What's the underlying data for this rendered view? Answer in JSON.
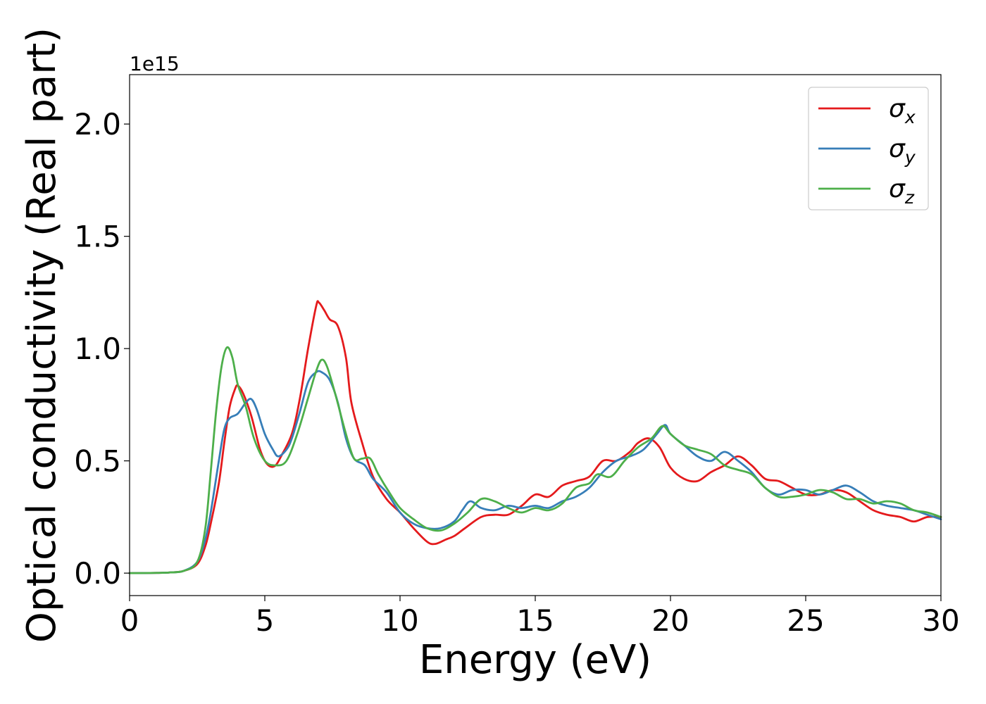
{
  "chart_data": {
    "type": "line",
    "xlabel": "Energy (eV)",
    "ylabel": "Optical conductivity (Real part)",
    "y_offset_text": "1e15",
    "y_scale_exponent": 15,
    "xlim": [
      0,
      30
    ],
    "ylim": [
      -0.1,
      2.22
    ],
    "x_ticks": [
      0,
      5,
      10,
      15,
      20,
      25,
      30
    ],
    "x_tick_labels": [
      "0",
      "5",
      "10",
      "15",
      "20",
      "25",
      "30"
    ],
    "y_ticks": [
      0.0,
      0.5,
      1.0,
      1.5,
      2.0
    ],
    "y_tick_labels": [
      "0.0",
      "0.5",
      "1.0",
      "1.5",
      "2.0"
    ],
    "grid": false,
    "legend_position": "top-right",
    "series": [
      {
        "name": "σx",
        "symbol": "σ",
        "subscript": "x",
        "color": "#e41a1c",
        "points": [
          [
            0,
            0
          ],
          [
            1,
            0.001
          ],
          [
            1.5,
            0.003
          ],
          [
            2,
            0.01
          ],
          [
            2.5,
            0.04
          ],
          [
            2.8,
            0.12
          ],
          [
            3,
            0.22
          ],
          [
            3.3,
            0.4
          ],
          [
            3.5,
            0.58
          ],
          [
            3.7,
            0.74
          ],
          [
            3.9,
            0.82
          ],
          [
            4.0,
            0.835
          ],
          [
            4.2,
            0.8
          ],
          [
            4.5,
            0.7
          ],
          [
            4.8,
            0.56
          ],
          [
            5.0,
            0.5
          ],
          [
            5.2,
            0.475
          ],
          [
            5.4,
            0.48
          ],
          [
            5.6,
            0.52
          ],
          [
            6.0,
            0.62
          ],
          [
            6.3,
            0.78
          ],
          [
            6.6,
            1.0
          ],
          [
            6.9,
            1.19
          ],
          [
            7.0,
            1.205
          ],
          [
            7.2,
            1.17
          ],
          [
            7.4,
            1.13
          ],
          [
            7.7,
            1.1
          ],
          [
            8.0,
            0.96
          ],
          [
            8.2,
            0.76
          ],
          [
            8.6,
            0.58
          ],
          [
            9.0,
            0.43
          ],
          [
            9.5,
            0.33
          ],
          [
            10.0,
            0.27
          ],
          [
            10.5,
            0.2
          ],
          [
            11.0,
            0.14
          ],
          [
            11.3,
            0.13
          ],
          [
            11.7,
            0.15
          ],
          [
            12.0,
            0.165
          ],
          [
            12.4,
            0.2
          ],
          [
            13.0,
            0.25
          ],
          [
            13.5,
            0.26
          ],
          [
            14.0,
            0.26
          ],
          [
            14.5,
            0.3
          ],
          [
            15.0,
            0.35
          ],
          [
            15.5,
            0.34
          ],
          [
            16.0,
            0.39
          ],
          [
            16.5,
            0.41
          ],
          [
            17.0,
            0.43
          ],
          [
            17.5,
            0.5
          ],
          [
            18.0,
            0.5
          ],
          [
            18.5,
            0.54
          ],
          [
            18.8,
            0.58
          ],
          [
            19.2,
            0.6
          ],
          [
            19.6,
            0.56
          ],
          [
            20.0,
            0.47
          ],
          [
            20.5,
            0.42
          ],
          [
            21.0,
            0.41
          ],
          [
            21.5,
            0.45
          ],
          [
            22.0,
            0.48
          ],
          [
            22.5,
            0.52
          ],
          [
            23.0,
            0.48
          ],
          [
            23.5,
            0.42
          ],
          [
            24.0,
            0.41
          ],
          [
            24.5,
            0.38
          ],
          [
            25.0,
            0.35
          ],
          [
            25.5,
            0.35
          ],
          [
            26.0,
            0.37
          ],
          [
            26.5,
            0.36
          ],
          [
            27.0,
            0.32
          ],
          [
            27.5,
            0.28
          ],
          [
            28.0,
            0.26
          ],
          [
            28.5,
            0.25
          ],
          [
            29.0,
            0.23
          ],
          [
            29.5,
            0.25
          ],
          [
            30.0,
            0.25
          ]
        ]
      },
      {
        "name": "σy",
        "symbol": "σ",
        "subscript": "y",
        "color": "#377eb8",
        "points": [
          [
            0,
            0
          ],
          [
            1,
            0.001
          ],
          [
            1.5,
            0.003
          ],
          [
            2,
            0.01
          ],
          [
            2.5,
            0.05
          ],
          [
            2.8,
            0.15
          ],
          [
            3,
            0.27
          ],
          [
            3.3,
            0.5
          ],
          [
            3.5,
            0.64
          ],
          [
            3.7,
            0.69
          ],
          [
            4.0,
            0.71
          ],
          [
            4.3,
            0.76
          ],
          [
            4.5,
            0.775
          ],
          [
            4.7,
            0.73
          ],
          [
            5.0,
            0.62
          ],
          [
            5.3,
            0.55
          ],
          [
            5.5,
            0.52
          ],
          [
            5.8,
            0.55
          ],
          [
            6.0,
            0.6
          ],
          [
            6.3,
            0.72
          ],
          [
            6.6,
            0.85
          ],
          [
            6.9,
            0.895
          ],
          [
            7.1,
            0.895
          ],
          [
            7.4,
            0.86
          ],
          [
            7.7,
            0.76
          ],
          [
            8.0,
            0.6
          ],
          [
            8.3,
            0.51
          ],
          [
            8.7,
            0.48
          ],
          [
            9.0,
            0.42
          ],
          [
            9.5,
            0.36
          ],
          [
            10.0,
            0.27
          ],
          [
            10.5,
            0.22
          ],
          [
            11.0,
            0.2
          ],
          [
            11.5,
            0.2
          ],
          [
            12.0,
            0.23
          ],
          [
            12.3,
            0.28
          ],
          [
            12.6,
            0.32
          ],
          [
            13.0,
            0.29
          ],
          [
            13.5,
            0.28
          ],
          [
            14.0,
            0.3
          ],
          [
            14.5,
            0.29
          ],
          [
            15.0,
            0.3
          ],
          [
            15.5,
            0.29
          ],
          [
            16.0,
            0.32
          ],
          [
            16.5,
            0.34
          ],
          [
            17.0,
            0.38
          ],
          [
            17.5,
            0.45
          ],
          [
            18.0,
            0.5
          ],
          [
            18.5,
            0.52
          ],
          [
            19.0,
            0.55
          ],
          [
            19.5,
            0.62
          ],
          [
            19.8,
            0.66
          ],
          [
            20.0,
            0.62
          ],
          [
            20.5,
            0.57
          ],
          [
            21.0,
            0.52
          ],
          [
            21.5,
            0.5
          ],
          [
            22.0,
            0.54
          ],
          [
            22.5,
            0.5
          ],
          [
            23.0,
            0.45
          ],
          [
            23.5,
            0.38
          ],
          [
            24.0,
            0.35
          ],
          [
            24.5,
            0.37
          ],
          [
            25.0,
            0.37
          ],
          [
            25.5,
            0.35
          ],
          [
            26.0,
            0.37
          ],
          [
            26.5,
            0.39
          ],
          [
            27.0,
            0.36
          ],
          [
            27.5,
            0.32
          ],
          [
            28.0,
            0.3
          ],
          [
            28.5,
            0.29
          ],
          [
            29.0,
            0.28
          ],
          [
            29.5,
            0.26
          ],
          [
            30.0,
            0.24
          ]
        ]
      },
      {
        "name": "σz",
        "symbol": "σ",
        "subscript": "z",
        "color": "#4daf4a",
        "points": [
          [
            0,
            0
          ],
          [
            1,
            0.001
          ],
          [
            1.5,
            0.003
          ],
          [
            2,
            0.01
          ],
          [
            2.5,
            0.05
          ],
          [
            2.8,
            0.2
          ],
          [
            3.0,
            0.45
          ],
          [
            3.2,
            0.72
          ],
          [
            3.4,
            0.92
          ],
          [
            3.6,
            1.005
          ],
          [
            3.8,
            0.96
          ],
          [
            4.0,
            0.84
          ],
          [
            4.3,
            0.74
          ],
          [
            4.6,
            0.6
          ],
          [
            5.0,
            0.5
          ],
          [
            5.4,
            0.48
          ],
          [
            5.8,
            0.5
          ],
          [
            6.2,
            0.62
          ],
          [
            6.6,
            0.78
          ],
          [
            6.9,
            0.9
          ],
          [
            7.1,
            0.95
          ],
          [
            7.3,
            0.92
          ],
          [
            7.6,
            0.8
          ],
          [
            8.0,
            0.62
          ],
          [
            8.3,
            0.51
          ],
          [
            8.6,
            0.51
          ],
          [
            8.9,
            0.51
          ],
          [
            9.2,
            0.44
          ],
          [
            9.6,
            0.36
          ],
          [
            10.0,
            0.29
          ],
          [
            10.5,
            0.24
          ],
          [
            11.0,
            0.2
          ],
          [
            11.5,
            0.19
          ],
          [
            12.0,
            0.22
          ],
          [
            12.5,
            0.27
          ],
          [
            13.0,
            0.33
          ],
          [
            13.5,
            0.32
          ],
          [
            14.0,
            0.29
          ],
          [
            14.5,
            0.27
          ],
          [
            15.0,
            0.29
          ],
          [
            15.5,
            0.28
          ],
          [
            16.0,
            0.31
          ],
          [
            16.5,
            0.38
          ],
          [
            17.0,
            0.4
          ],
          [
            17.3,
            0.44
          ],
          [
            17.8,
            0.43
          ],
          [
            18.3,
            0.5
          ],
          [
            18.8,
            0.56
          ],
          [
            19.3,
            0.6
          ],
          [
            19.7,
            0.655
          ],
          [
            20.0,
            0.62
          ],
          [
            20.5,
            0.57
          ],
          [
            21.0,
            0.55
          ],
          [
            21.5,
            0.53
          ],
          [
            22.0,
            0.48
          ],
          [
            22.5,
            0.46
          ],
          [
            23.0,
            0.44
          ],
          [
            23.5,
            0.38
          ],
          [
            24.0,
            0.34
          ],
          [
            24.5,
            0.34
          ],
          [
            25.0,
            0.35
          ],
          [
            25.5,
            0.37
          ],
          [
            26.0,
            0.36
          ],
          [
            26.5,
            0.33
          ],
          [
            27.0,
            0.33
          ],
          [
            27.5,
            0.31
          ],
          [
            28.0,
            0.32
          ],
          [
            28.5,
            0.31
          ],
          [
            29.0,
            0.28
          ],
          [
            29.5,
            0.27
          ],
          [
            30.0,
            0.25
          ]
        ]
      }
    ]
  }
}
